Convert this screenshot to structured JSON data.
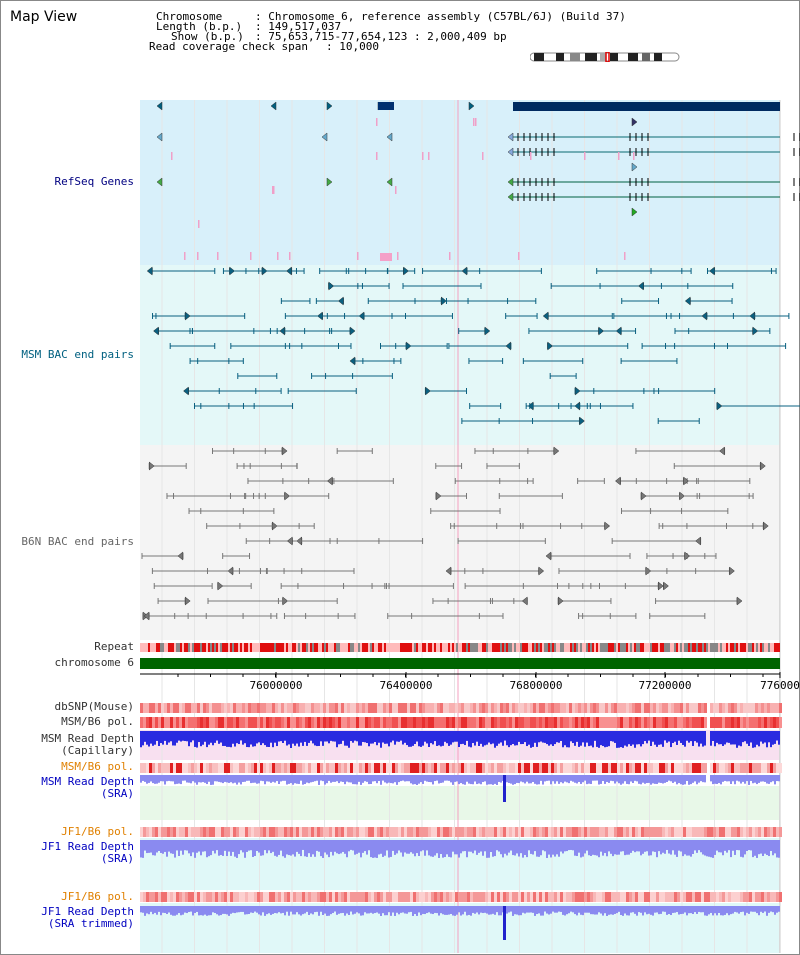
{
  "header": {
    "title": "Map View",
    "chromosome_key": "Chromosome",
    "chromosome_value": ": Chromosome 6, reference assembly (C57BL/6J) (Build 37)",
    "length_key": "Length (b.p.)",
    "length_value": ": 149,517,037",
    "show_key": "Show (b.p.)",
    "show_value": ": 75,653,715-77,654,123 : 2,000,409 bp",
    "coverage_key": "Read coverage check span",
    "coverage_value": ": 10,000"
  },
  "tracks": {
    "refseq": "RefSeq Genes",
    "msm_bac": "MSM BAC end pairs",
    "b6n_bac": "B6N BAC end pairs",
    "repeat": "Repeat",
    "chromosome": "chromosome 6",
    "dbsnp": "dbSNP(Mouse)",
    "msm_b6_pol": "MSM/B6 pol.",
    "msm_depth_cap_1": "MSM Read Depth",
    "msm_depth_cap_2": "(Capillary)",
    "msm_b6_pol_2": "MSM/B6 pol.",
    "msm_depth_sra_1": "MSM Read Depth",
    "msm_depth_sra_2": "(SRA)",
    "jf1_b6_pol": "JF1/B6 pol.",
    "jf1_depth_sra_1": "JF1 Read Depth",
    "jf1_depth_sra_2": "(SRA)",
    "jf1_b6_pol_2": "JF1/B6 pol.",
    "jf1_depth_trim_1": "JF1 Read Depth",
    "jf1_depth_trim_2": "(SRA trimmed)"
  },
  "axis": {
    "ticks": [
      "76000000",
      "76400000",
      "76800000",
      "77200000",
      "776000"
    ]
  },
  "colors": {
    "refseq_bg": "#d8f0fa",
    "msm_bg": "#e4f8f8",
    "b6n_bg": "#f4f4f4",
    "gene": "#006040",
    "msm_feature": "#0a6080",
    "b6n_feature": "#777777",
    "chromosome_bar": "#006400",
    "depth_blue": "#2a2ae0",
    "depth_light": "#8a8af0",
    "pol_red": "#f05050",
    "highlight_line": "#f4a0c0"
  }
}
